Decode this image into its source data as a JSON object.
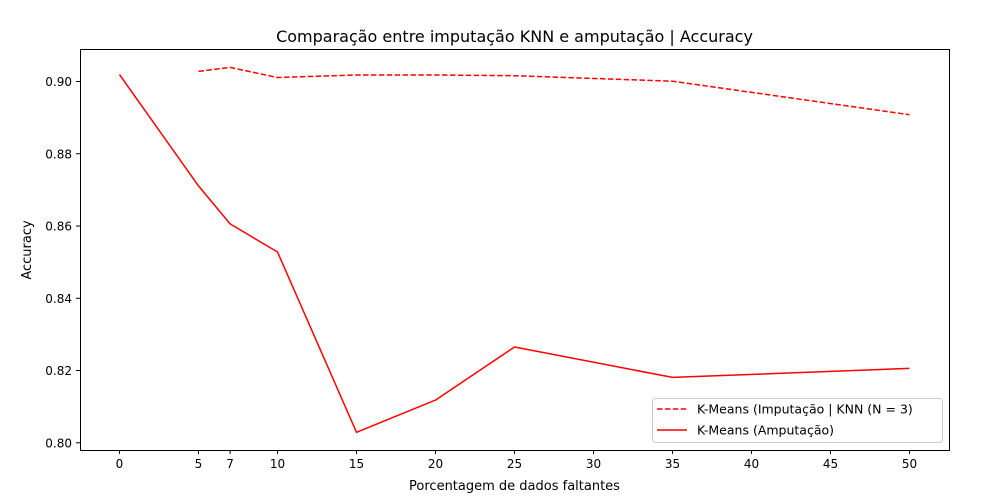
{
  "chart_data": {
    "type": "line",
    "title": "Comparação entre imputação KNN e amputação | Accuracy",
    "xlabel": "Porcentagem de dados faltantes",
    "ylabel": "Accuracy",
    "xlim": [
      -2.5,
      52.5
    ],
    "ylim": [
      0.798,
      0.909
    ],
    "xticks": [
      0,
      5,
      7,
      10,
      15,
      20,
      25,
      30,
      35,
      40,
      45,
      50
    ],
    "yticks": [
      0.8,
      0.82,
      0.84,
      0.86,
      0.88,
      0.9
    ],
    "ytick_labels": [
      "0.80",
      "0.82",
      "0.84",
      "0.86",
      "0.88",
      "0.90"
    ],
    "grid": false,
    "legend_position": "lower-right",
    "series": [
      {
        "name": "K-Means (Imputação | KNN (N = 3)",
        "style": "dashed",
        "color": "#ff0000",
        "x": [
          5,
          7,
          10,
          15,
          20,
          25,
          35,
          50
        ],
        "y": [
          0.9028,
          0.9039,
          0.9011,
          0.9018,
          0.9018,
          0.9016,
          0.9001,
          0.8908
        ]
      },
      {
        "name": "K-Means (Amputação)",
        "style": "solid",
        "color": "#ff0000",
        "x": [
          0,
          5,
          7,
          10,
          15,
          20,
          25,
          35,
          50
        ],
        "y": [
          0.9019,
          0.8711,
          0.8606,
          0.8528,
          0.8029,
          0.8118,
          0.8265,
          0.8181,
          0.8206
        ]
      }
    ]
  }
}
